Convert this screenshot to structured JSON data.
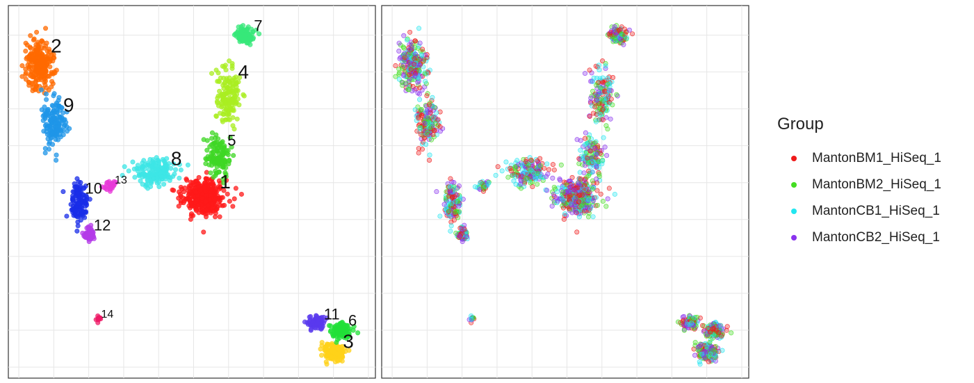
{
  "chart_data": [
    {
      "type": "scatter",
      "title": "",
      "xlabel": "",
      "ylabel": "",
      "grid": true,
      "colored_by": "cluster",
      "clusters": [
        {
          "id": 1,
          "label": "1",
          "color": "#ff1a1a",
          "center": [
            5.3,
            4.6
          ],
          "spread": [
            0.5,
            0.4
          ],
          "n": 420
        },
        {
          "id": 2,
          "label": "2",
          "color": "#ff6a00",
          "center": [
            0.6,
            8.2
          ],
          "spread": [
            0.35,
            0.55
          ],
          "n": 260
        },
        {
          "id": 3,
          "label": "3",
          "color": "#ffd21a",
          "center": [
            9.0,
            0.4
          ],
          "spread": [
            0.3,
            0.2
          ],
          "n": 160
        },
        {
          "id": 4,
          "label": "4",
          "color": "#aaee22",
          "center": [
            6.0,
            7.4
          ],
          "spread": [
            0.3,
            0.7
          ],
          "n": 150
        },
        {
          "id": 5,
          "label": "5",
          "color": "#3fd726",
          "center": [
            5.7,
            5.7
          ],
          "spread": [
            0.3,
            0.5
          ],
          "n": 130
        },
        {
          "id": 6,
          "label": "6",
          "color": "#22e038",
          "center": [
            9.2,
            1.0
          ],
          "spread": [
            0.25,
            0.2
          ],
          "n": 120
        },
        {
          "id": 7,
          "label": "7",
          "color": "#37e87a",
          "center": [
            6.5,
            9.0
          ],
          "spread": [
            0.25,
            0.18
          ],
          "n": 120
        },
        {
          "id": 8,
          "label": "8",
          "color": "#3de6e6",
          "center": [
            3.9,
            5.3
          ],
          "spread": [
            0.5,
            0.3
          ],
          "n": 170
        },
        {
          "id": 9,
          "label": "9",
          "color": "#1f96e8",
          "center": [
            1.0,
            6.6
          ],
          "spread": [
            0.3,
            0.55
          ],
          "n": 150
        },
        {
          "id": 10,
          "label": "10",
          "color": "#1a2ee8",
          "center": [
            1.7,
            4.4
          ],
          "spread": [
            0.22,
            0.5
          ],
          "n": 130
        },
        {
          "id": 11,
          "label": "11",
          "color": "#5a3aee",
          "center": [
            8.5,
            1.2
          ],
          "spread": [
            0.25,
            0.16
          ],
          "n": 80
        },
        {
          "id": 12,
          "label": "12",
          "color": "#b43ce8",
          "center": [
            2.0,
            3.6
          ],
          "spread": [
            0.16,
            0.18
          ],
          "n": 60
        },
        {
          "id": 13,
          "label": "13",
          "color": "#e83ad8",
          "center": [
            2.6,
            4.9
          ],
          "spread": [
            0.16,
            0.12
          ],
          "n": 30
        },
        {
          "id": 14,
          "label": "14",
          "color": "#ee1a66",
          "center": [
            2.3,
            1.3
          ],
          "spread": [
            0.06,
            0.06
          ],
          "n": 12
        }
      ],
      "xlim": [
        -0.3,
        10.2
      ],
      "ylim": [
        -0.3,
        9.8
      ]
    },
    {
      "type": "scatter",
      "title": "",
      "xlabel": "",
      "ylabel": "",
      "grid": true,
      "colored_by": "group",
      "legend": {
        "title": "Group",
        "placement": "right",
        "entries": [
          {
            "name": "MantonBM1_HiSeq_1",
            "color": "#ef1a1a"
          },
          {
            "name": "MantonBM2_HiSeq_1",
            "color": "#44dd22"
          },
          {
            "name": "MantonCB1_HiSeq_1",
            "color": "#22e6f0"
          },
          {
            "name": "MantonCB2_HiSeq_1",
            "color": "#8a33ee"
          }
        ]
      },
      "xlim": [
        -0.3,
        10.2
      ],
      "ylim": [
        -0.3,
        9.8
      ]
    }
  ]
}
